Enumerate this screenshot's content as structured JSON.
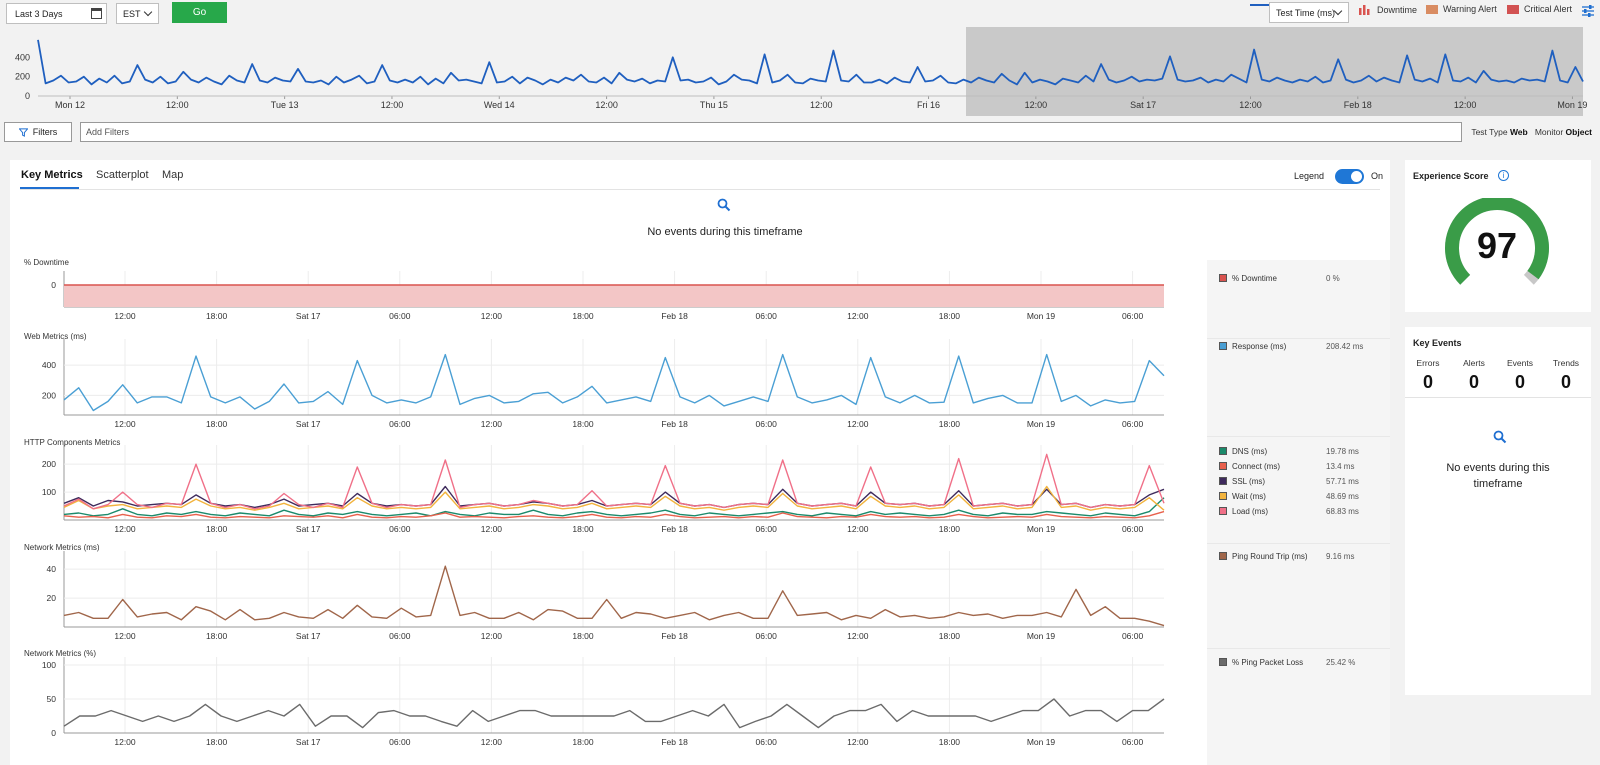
{
  "toolbar": {
    "time_range": "Last 3 Days",
    "timezone": "EST",
    "go_label": "Go",
    "metric_select": "Test Time (ms)",
    "legend": [
      {
        "label": "Downtime",
        "color": "#d9534f"
      },
      {
        "label": "Warning Alert",
        "color": "#d98c62"
      },
      {
        "label": "Critical Alert",
        "color": "#d25252"
      }
    ]
  },
  "overview": {
    "y_ticks": [
      "400",
      "200",
      "0"
    ],
    "x_ticks": [
      "Mon 12",
      "12:00",
      "Tue 13",
      "12:00",
      "Wed 14",
      "12:00",
      "Thu 15",
      "12:00",
      "Fri 16",
      "12:00",
      "Sat 17",
      "12:00",
      "Feb 18",
      "12:00",
      "Mon 19"
    ],
    "series_color": "#1f5fbf",
    "selected_from_label": "12:00",
    "values": [
      580,
      130,
      160,
      210,
      140,
      150,
      200,
      120,
      180,
      140,
      210,
      130,
      150,
      320,
      170,
      140,
      200,
      130,
      150,
      250,
      170,
      140,
      190,
      150,
      120,
      210,
      160,
      140,
      330,
      160,
      140,
      190,
      160,
      150,
      280,
      150,
      140,
      160,
      120,
      200,
      140,
      170,
      210,
      130,
      150,
      320,
      160,
      140,
      170,
      140,
      200,
      120,
      180,
      130,
      240,
      160,
      170,
      150,
      130,
      350,
      140,
      150,
      200,
      130,
      190,
      160,
      120,
      170,
      140,
      190,
      160,
      220,
      150,
      140,
      190,
      130,
      240,
      170,
      150,
      180,
      130,
      160,
      150,
      400,
      160,
      170,
      140,
      150,
      190,
      120,
      150,
      220,
      170,
      160,
      130,
      430,
      140,
      160,
      220,
      140,
      130,
      180,
      160,
      150,
      470,
      160,
      150,
      220,
      140,
      140,
      170,
      130,
      190,
      150,
      140,
      300,
      150,
      160,
      210,
      140,
      130,
      170,
      140,
      190,
      160,
      140,
      230,
      160,
      120,
      240,
      140,
      170,
      150,
      120,
      180,
      160,
      140,
      210,
      150,
      330,
      170,
      140,
      160,
      200,
      150,
      170,
      160,
      180,
      410,
      170,
      150,
      160,
      190,
      140,
      170,
      150,
      220,
      180,
      140,
      480,
      170,
      150,
      190,
      160,
      140,
      170,
      150,
      200,
      140,
      160,
      380,
      170,
      140,
      160,
      210,
      150,
      190,
      160,
      140,
      420,
      170,
      150,
      180,
      140,
      430,
      160,
      150,
      190,
      140,
      260,
      170,
      150,
      160,
      140,
      180,
      160,
      170,
      150,
      470,
      160,
      140,
      300,
      150
    ]
  },
  "filters": {
    "button_label": "Filters",
    "placeholder": "Add Filters",
    "test_type_label": "Test Type",
    "test_type_value": "Web",
    "monitor_label": "Monitor",
    "monitor_value": "Object"
  },
  "main": {
    "tabs": [
      {
        "label": "Key Metrics"
      },
      {
        "label": "Scatterplot"
      },
      {
        "label": "Map"
      }
    ],
    "legend_label": "Legend",
    "legend_state": "On",
    "empty_message": "No events during this timeframe"
  },
  "chart_data": [
    {
      "type": "area",
      "title": "% Downtime",
      "x_ticks": [
        "12:00",
        "18:00",
        "Sat 17",
        "06:00",
        "12:00",
        "18:00",
        "Feb 18",
        "06:00",
        "12:00",
        "18:00",
        "Mon 19",
        "06:00"
      ],
      "y_ticks": [
        0
      ],
      "series": [
        {
          "name": "% Downtime",
          "color": "#d9534f",
          "values": [
            0,
            0
          ]
        }
      ]
    },
    {
      "type": "line",
      "title": "Web Metrics (ms)",
      "x_ticks": [
        "12:00",
        "18:00",
        "Sat 17",
        "06:00",
        "12:00",
        "18:00",
        "Feb 18",
        "06:00",
        "12:00",
        "18:00",
        "Mon 19",
        "06:00"
      ],
      "y_ticks": [
        400,
        200
      ],
      "ylim": [
        70,
        520
      ],
      "series": [
        {
          "name": "Response (ms)",
          "color": "#4a9fd4",
          "values": [
            170,
            250,
            100,
            160,
            270,
            150,
            190,
            190,
            150,
            460,
            190,
            150,
            190,
            110,
            160,
            275,
            150,
            160,
            225,
            140,
            430,
            200,
            150,
            170,
            150,
            190,
            470,
            140,
            180,
            200,
            150,
            160,
            210,
            220,
            150,
            190,
            260,
            150,
            170,
            190,
            160,
            450,
            190,
            150,
            200,
            130,
            160,
            190,
            160,
            470,
            190,
            150,
            170,
            200,
            140,
            450,
            190,
            150,
            200,
            150,
            155,
            460,
            150,
            180,
            200,
            150,
            150,
            470,
            160,
            200,
            130,
            170,
            150,
            160,
            430,
            330
          ]
        }
      ]
    },
    {
      "type": "line",
      "title": "HTTP Components Metrics",
      "x_ticks": [
        "12:00",
        "18:00",
        "Sat 17",
        "06:00",
        "12:00",
        "18:00",
        "Feb 18",
        "06:00",
        "12:00",
        "18:00",
        "Mon 19",
        "06:00"
      ],
      "y_ticks": [
        200,
        100
      ],
      "ylim": [
        0,
        240
      ],
      "series": [
        {
          "name": "DNS (ms)",
          "color": "#1b8a6b",
          "values": [
            20,
            25,
            15,
            20,
            40,
            20,
            15,
            25,
            20,
            30,
            20,
            15,
            25,
            20,
            15,
            35,
            20,
            15,
            25,
            20,
            30,
            20,
            15,
            20,
            25,
            15,
            30,
            20,
            15,
            25,
            20,
            20,
            35,
            20,
            15,
            25,
            30,
            20,
            15,
            20,
            25,
            35,
            20,
            15,
            25,
            20,
            15,
            20,
            25,
            30,
            20,
            15,
            25,
            20,
            15,
            30,
            20,
            25,
            20,
            15,
            20,
            35,
            20,
            15,
            25,
            20,
            20,
            30,
            25,
            20,
            15,
            25,
            20,
            15,
            30,
            80
          ]
        },
        {
          "name": "Connect (ms)",
          "color": "#e8604c",
          "values": [
            15,
            10,
            12,
            8,
            20,
            10,
            8,
            15,
            12,
            20,
            10,
            8,
            12,
            10,
            8,
            15,
            12,
            10,
            15,
            8,
            20,
            10,
            8,
            12,
            10,
            15,
            25,
            10,
            12,
            10,
            8,
            12,
            15,
            10,
            8,
            12,
            20,
            10,
            8,
            12,
            10,
            20,
            12,
            8,
            10,
            12,
            8,
            12,
            10,
            25,
            12,
            10,
            8,
            12,
            10,
            20,
            12,
            10,
            12,
            8,
            10,
            20,
            12,
            8,
            10,
            12,
            10,
            20,
            12,
            10,
            8,
            12,
            10,
            8,
            15,
            30
          ]
        },
        {
          "name": "SSL (ms)",
          "color": "#3e2a5c",
          "values": [
            60,
            80,
            50,
            70,
            65,
            50,
            55,
            60,
            55,
            90,
            60,
            50,
            55,
            45,
            55,
            75,
            50,
            55,
            60,
            50,
            95,
            60,
            50,
            55,
            50,
            55,
            120,
            50,
            55,
            60,
            50,
            55,
            65,
            60,
            50,
            55,
            70,
            50,
            55,
            60,
            55,
            100,
            60,
            50,
            55,
            45,
            55,
            60,
            55,
            110,
            60,
            50,
            55,
            60,
            50,
            100,
            60,
            55,
            60,
            50,
            55,
            105,
            50,
            55,
            60,
            50,
            55,
            110,
            55,
            60,
            45,
            55,
            50,
            55,
            90,
            110
          ]
        },
        {
          "name": "Wait (ms)",
          "color": "#f2b33d",
          "values": [
            45,
            70,
            40,
            50,
            55,
            40,
            45,
            50,
            45,
            75,
            50,
            40,
            45,
            35,
            45,
            60,
            40,
            45,
            50,
            40,
            80,
            50,
            40,
            45,
            40,
            45,
            100,
            40,
            45,
            50,
            40,
            45,
            55,
            50,
            40,
            45,
            60,
            40,
            45,
            50,
            45,
            85,
            50,
            40,
            45,
            35,
            45,
            50,
            45,
            95,
            50,
            40,
            45,
            50,
            40,
            85,
            50,
            45,
            50,
            40,
            45,
            90,
            40,
            45,
            50,
            40,
            45,
            120,
            45,
            50,
            35,
            45,
            40,
            45,
            80,
            35
          ]
        },
        {
          "name": "Load (ms)",
          "color": "#f07088",
          "values": [
            50,
            75,
            40,
            55,
            100,
            55,
            45,
            60,
            55,
            200,
            60,
            45,
            55,
            40,
            50,
            95,
            55,
            45,
            60,
            45,
            190,
            60,
            45,
            55,
            50,
            55,
            215,
            45,
            55,
            60,
            50,
            55,
            70,
            60,
            50,
            55,
            105,
            50,
            55,
            60,
            55,
            195,
            60,
            50,
            55,
            45,
            55,
            60,
            55,
            215,
            60,
            50,
            55,
            60,
            50,
            190,
            60,
            55,
            60,
            50,
            55,
            220,
            50,
            55,
            60,
            50,
            55,
            235,
            55,
            60,
            45,
            55,
            50,
            55,
            195,
            60
          ]
        }
      ]
    },
    {
      "type": "line",
      "title": "Network Metrics (ms)",
      "x_ticks": [
        "12:00",
        "18:00",
        "Sat 17",
        "06:00",
        "12:00",
        "18:00",
        "Feb 18",
        "06:00",
        "12:00",
        "18:00",
        "Mon 19",
        "06:00"
      ],
      "y_ticks": [
        40,
        20
      ],
      "ylim": [
        0,
        47
      ],
      "series": [
        {
          "name": "Ping Round Trip (ms)",
          "color": "#a0664a",
          "values": [
            8,
            10,
            6,
            6,
            19,
            7,
            9,
            10,
            5,
            14,
            11,
            5,
            12,
            5,
            6,
            10,
            7,
            6,
            12,
            6,
            15,
            7,
            6,
            13,
            7,
            8,
            42,
            8,
            10,
            6,
            6,
            10,
            5,
            12,
            11,
            6,
            6,
            19,
            6,
            10,
            9,
            6,
            8,
            10,
            5,
            8,
            10,
            6,
            6,
            25,
            8,
            9,
            10,
            5,
            8,
            6,
            12,
            7,
            8,
            6,
            7,
            10,
            8,
            9,
            6,
            8,
            8,
            10,
            7,
            26,
            8,
            14,
            6,
            6,
            4,
            1
          ]
        }
      ]
    },
    {
      "type": "line",
      "title": "Network Metrics (%)",
      "x_ticks": [
        "12:00",
        "18:00",
        "Sat 17",
        "06:00",
        "12:00",
        "18:00",
        "Feb 18",
        "06:00",
        "12:00",
        "18:00",
        "Mon 19",
        "06:00"
      ],
      "y_ticks": [
        100,
        50,
        0
      ],
      "ylim": [
        0,
        100
      ],
      "series": [
        {
          "name": "% Ping Packet Loss",
          "color": "#6b6b6b",
          "values": [
            10,
            25,
            25,
            33,
            25,
            17,
            25,
            17,
            25,
            42,
            25,
            17,
            25,
            33,
            25,
            42,
            10,
            25,
            25,
            8,
            30,
            33,
            25,
            25,
            17,
            10,
            33,
            17,
            25,
            33,
            33,
            25,
            25,
            25,
            25,
            25,
            33,
            17,
            17,
            25,
            33,
            25,
            42,
            8,
            17,
            25,
            42,
            25,
            8,
            25,
            33,
            33,
            42,
            17,
            33,
            25,
            25,
            25,
            25,
            17,
            25,
            33,
            33,
            50,
            25,
            33,
            33,
            17,
            33,
            33,
            50
          ]
        }
      ]
    }
  ],
  "experience": {
    "title": "Experience Score",
    "score": "97",
    "score_value": 97,
    "gauge_color": "#3a9c48"
  },
  "key_events": {
    "title": "Key Events",
    "columns": [
      {
        "label": "Errors",
        "value": "0"
      },
      {
        "label": "Alerts",
        "value": "0"
      },
      {
        "label": "Events",
        "value": "0"
      },
      {
        "label": "Trends",
        "value": "0"
      }
    ],
    "empty_message": "No events during this timeframe"
  },
  "legend_panel": [
    {
      "name": "% Downtime",
      "value": "0 %",
      "color": "#d9534f"
    },
    {
      "name": "Response (ms)",
      "value": "208.42 ms",
      "color": "#4a9fd4"
    },
    {
      "name": "DNS (ms)",
      "value": "19.78 ms",
      "color": "#1b8a6b"
    },
    {
      "name": "Connect (ms)",
      "value": "13.4 ms",
      "color": "#e8604c"
    },
    {
      "name": "SSL (ms)",
      "value": "57.71 ms",
      "color": "#3e2a5c"
    },
    {
      "name": "Wait (ms)",
      "value": "48.69 ms",
      "color": "#f2b33d"
    },
    {
      "name": "Load (ms)",
      "value": "68.83 ms",
      "color": "#f07088"
    },
    {
      "name": "Ping Round Trip (ms)",
      "value": "9.16 ms",
      "color": "#a0664a"
    },
    {
      "name": "% Ping Packet Loss",
      "value": "25.42 %",
      "color": "#6b6b6b"
    }
  ]
}
